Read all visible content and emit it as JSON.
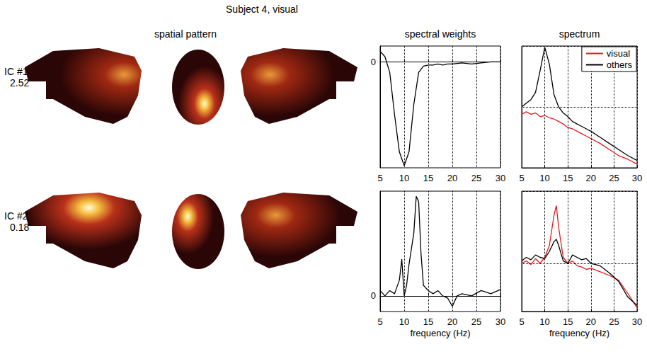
{
  "figure": {
    "title": "Subject 4, visual",
    "spatial_pattern_title": "spatial pattern",
    "components": [
      {
        "label": "IC #1",
        "value": 2.52
      },
      {
        "label": "IC #2",
        "value": 0.18
      }
    ]
  },
  "chart_data": [
    {
      "type": "line",
      "title": "spectral weights",
      "x": [
        5,
        6,
        7,
        8,
        9,
        10,
        11,
        12,
        13,
        14,
        15,
        16,
        17,
        18,
        19,
        20,
        22,
        24,
        26,
        28,
        30
      ],
      "series": [
        {
          "color": "#000000",
          "values": [
            0.1,
            0.05,
            -0.1,
            -0.5,
            -0.85,
            -0.98,
            -0.85,
            -0.4,
            -0.1,
            -0.04,
            -0.03,
            -0.03,
            -0.02,
            -0.03,
            -0.02,
            -0.02,
            -0.01,
            -0.02,
            -0.01,
            0,
            0
          ]
        }
      ],
      "xlim": [
        5,
        30
      ],
      "xticks": [
        5,
        10,
        15,
        20,
        25,
        30
      ],
      "ylim": [
        -1,
        0.15
      ],
      "yticks": [
        0
      ],
      "grid": true
    },
    {
      "type": "line",
      "title": "spectrum",
      "x": [
        5,
        6,
        7,
        8,
        9,
        10,
        11,
        12,
        13,
        14,
        15,
        16,
        17,
        18,
        19,
        20,
        22,
        24,
        26,
        28,
        30
      ],
      "series": [
        {
          "name": "visual",
          "color": "#e41a1c",
          "values": [
            0.44,
            0.46,
            0.44,
            0.45,
            0.42,
            0.43,
            0.41,
            0.4,
            0.38,
            0.36,
            0.33,
            0.32,
            0.3,
            0.28,
            0.26,
            0.24,
            0.2,
            0.15,
            0.1,
            0.07,
            0.03
          ]
        },
        {
          "name": "others",
          "color": "#000000",
          "values": [
            0.5,
            0.53,
            0.56,
            0.62,
            0.8,
            0.99,
            0.85,
            0.6,
            0.5,
            0.45,
            0.42,
            0.38,
            0.36,
            0.34,
            0.32,
            0.3,
            0.25,
            0.2,
            0.15,
            0.1,
            0.06
          ]
        }
      ],
      "xlim": [
        5,
        30
      ],
      "xticks": [
        5,
        10,
        15,
        20,
        25,
        30
      ],
      "ylim": [
        0,
        1
      ],
      "yticks": [
        0,
        0.5,
        1
      ],
      "grid": true,
      "tick_labels": "x",
      "legend": "upper right"
    },
    {
      "type": "line",
      "xlabel": "frequency (Hz)",
      "x": [
        5,
        6,
        7,
        8,
        9,
        9.5,
        10,
        10.5,
        11,
        12,
        12.5,
        13,
        13.5,
        14,
        15,
        16,
        17,
        18,
        19,
        20,
        21,
        22,
        24,
        26,
        28,
        30
      ],
      "series": [
        {
          "color": "#000000",
          "values": [
            0.05,
            0.0,
            0.05,
            0.02,
            0.15,
            0.35,
            0.0,
            0.1,
            0.3,
            0.6,
            0.95,
            0.9,
            0.4,
            0.1,
            0.05,
            0.02,
            0.05,
            0.0,
            -0.02,
            -0.1,
            0.0,
            0.02,
            0.0,
            0.05,
            0.02,
            0.06
          ]
        }
      ],
      "xlim": [
        5,
        30
      ],
      "xticks": [
        5,
        10,
        15,
        20,
        25,
        30
      ],
      "ylim": [
        -0.15,
        1
      ],
      "yticks": [
        0
      ],
      "grid": true
    },
    {
      "type": "line",
      "xlabel": "frequency (Hz)",
      "x": [
        5,
        6,
        7,
        8,
        9,
        10,
        11,
        12,
        12.5,
        13,
        14,
        15,
        16,
        17,
        18,
        19,
        20,
        22,
        24,
        26,
        28,
        30
      ],
      "series": [
        {
          "color": "#e41a1c",
          "values": [
            0.4,
            0.42,
            0.39,
            0.44,
            0.4,
            0.45,
            0.55,
            0.8,
            0.88,
            0.7,
            0.45,
            0.4,
            0.42,
            0.38,
            0.37,
            0.35,
            0.36,
            0.33,
            0.3,
            0.26,
            0.15,
            0.03
          ]
        },
        {
          "color": "#000000",
          "values": [
            0.42,
            0.45,
            0.43,
            0.47,
            0.45,
            0.44,
            0.5,
            0.58,
            0.6,
            0.55,
            0.42,
            0.4,
            0.47,
            0.45,
            0.43,
            0.44,
            0.4,
            0.38,
            0.32,
            0.25,
            0.12,
            0.05
          ]
        }
      ],
      "xlim": [
        5,
        30
      ],
      "xticks": [
        5,
        10,
        15,
        20,
        25,
        30
      ],
      "ylim": [
        0,
        1
      ],
      "yticks": [
        0,
        0.4,
        1
      ],
      "grid": true,
      "tick_labels": "x"
    }
  ]
}
